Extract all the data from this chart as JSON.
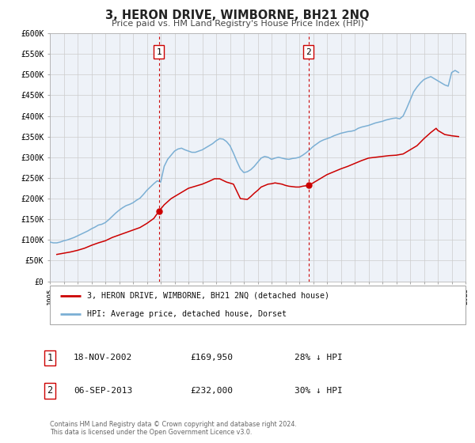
{
  "title": "3, HERON DRIVE, WIMBORNE, BH21 2NQ",
  "subtitle": "Price paid vs. HM Land Registry's House Price Index (HPI)",
  "xlim": [
    1995,
    2025
  ],
  "ylim": [
    0,
    600000
  ],
  "yticks": [
    0,
    50000,
    100000,
    150000,
    200000,
    250000,
    300000,
    350000,
    400000,
    450000,
    500000,
    550000,
    600000
  ],
  "ytick_labels": [
    "£0",
    "£50K",
    "£100K",
    "£150K",
    "£200K",
    "£250K",
    "£300K",
    "£350K",
    "£400K",
    "£450K",
    "£500K",
    "£550K",
    "£600K"
  ],
  "hpi_color": "#7bafd4",
  "price_color": "#cc0000",
  "marker_color": "#cc0000",
  "vline_color": "#cc0000",
  "grid_color": "#cccccc",
  "bg_color": "#eef2f8",
  "legend_label_price": "3, HERON DRIVE, WIMBORNE, BH21 2NQ (detached house)",
  "legend_label_hpi": "HPI: Average price, detached house, Dorset",
  "transaction1_date": "18-NOV-2002",
  "transaction1_price": "£169,950",
  "transaction1_pct": "28% ↓ HPI",
  "transaction1_x": 2002.88,
  "transaction1_y": 169950,
  "transaction2_date": "06-SEP-2013",
  "transaction2_price": "£232,000",
  "transaction2_pct": "30% ↓ HPI",
  "transaction2_x": 2013.68,
  "transaction2_y": 232000,
  "footer": "Contains HM Land Registry data © Crown copyright and database right 2024.\nThis data is licensed under the Open Government Licence v3.0.",
  "hpi_data_x": [
    1995.0,
    1995.25,
    1995.5,
    1995.75,
    1996.0,
    1996.25,
    1996.5,
    1996.75,
    1997.0,
    1997.25,
    1997.5,
    1997.75,
    1998.0,
    1998.25,
    1998.5,
    1998.75,
    1999.0,
    1999.25,
    1999.5,
    1999.75,
    2000.0,
    2000.25,
    2000.5,
    2000.75,
    2001.0,
    2001.25,
    2001.5,
    2001.75,
    2002.0,
    2002.25,
    2002.5,
    2002.75,
    2003.0,
    2003.25,
    2003.5,
    2003.75,
    2004.0,
    2004.25,
    2004.5,
    2004.75,
    2005.0,
    2005.25,
    2005.5,
    2005.75,
    2006.0,
    2006.25,
    2006.5,
    2006.75,
    2007.0,
    2007.25,
    2007.5,
    2007.75,
    2008.0,
    2008.25,
    2008.5,
    2008.75,
    2009.0,
    2009.25,
    2009.5,
    2009.75,
    2010.0,
    2010.25,
    2010.5,
    2010.75,
    2011.0,
    2011.25,
    2011.5,
    2011.75,
    2012.0,
    2012.25,
    2012.5,
    2012.75,
    2013.0,
    2013.25,
    2013.5,
    2013.75,
    2014.0,
    2014.25,
    2014.5,
    2014.75,
    2015.0,
    2015.25,
    2015.5,
    2015.75,
    2016.0,
    2016.25,
    2016.5,
    2016.75,
    2017.0,
    2017.25,
    2017.5,
    2017.75,
    2018.0,
    2018.25,
    2018.5,
    2018.75,
    2019.0,
    2019.25,
    2019.5,
    2019.75,
    2020.0,
    2020.25,
    2020.5,
    2020.75,
    2021.0,
    2021.25,
    2021.5,
    2021.75,
    2022.0,
    2022.25,
    2022.5,
    2022.75,
    2023.0,
    2023.25,
    2023.5,
    2023.75,
    2024.0,
    2024.25,
    2024.5
  ],
  "hpi_data_y": [
    95000,
    93000,
    93000,
    95000,
    98000,
    100000,
    103000,
    106000,
    110000,
    114000,
    118000,
    122000,
    127000,
    131000,
    136000,
    138000,
    142000,
    149000,
    157000,
    165000,
    172000,
    178000,
    183000,
    186000,
    190000,
    196000,
    201000,
    210000,
    220000,
    228000,
    236000,
    243000,
    240000,
    278000,
    295000,
    305000,
    315000,
    320000,
    322000,
    318000,
    315000,
    312000,
    312000,
    315000,
    318000,
    323000,
    328000,
    333000,
    340000,
    345000,
    344000,
    338000,
    328000,
    310000,
    290000,
    272000,
    263000,
    265000,
    270000,
    278000,
    288000,
    298000,
    302000,
    300000,
    295000,
    298000,
    300000,
    298000,
    296000,
    295000,
    297000,
    298000,
    300000,
    305000,
    311000,
    318000,
    326000,
    332000,
    338000,
    342000,
    345000,
    348000,
    352000,
    355000,
    358000,
    360000,
    362000,
    363000,
    365000,
    370000,
    373000,
    375000,
    377000,
    380000,
    383000,
    385000,
    387000,
    390000,
    392000,
    394000,
    395000,
    393000,
    400000,
    418000,
    438000,
    458000,
    470000,
    480000,
    488000,
    492000,
    495000,
    490000,
    485000,
    480000,
    475000,
    472000,
    505000,
    510000,
    505000
  ],
  "price_data_x": [
    1995.5,
    1996.0,
    1996.5,
    1997.0,
    1997.5,
    1998.0,
    1998.5,
    1999.0,
    1999.5,
    2000.0,
    2000.5,
    2001.0,
    2001.5,
    2002.0,
    2002.5,
    2002.88,
    2003.25,
    2003.75,
    2004.25,
    2004.75,
    2005.0,
    2005.5,
    2006.0,
    2006.5,
    2006.88,
    2007.25,
    2007.75,
    2008.25,
    2008.75,
    2009.25,
    2009.5,
    2009.75,
    2010.0,
    2010.25,
    2010.75,
    2011.0,
    2011.25,
    2011.75,
    2012.0,
    2012.25,
    2012.75,
    2013.0,
    2013.25,
    2013.68,
    2014.0,
    2014.5,
    2015.0,
    2015.5,
    2016.0,
    2016.5,
    2017.0,
    2017.5,
    2018.0,
    2018.5,
    2019.0,
    2019.5,
    2020.0,
    2020.5,
    2021.0,
    2021.5,
    2022.0,
    2022.5,
    2022.88,
    2023.0,
    2023.5,
    2024.0,
    2024.5
  ],
  "price_data_y": [
    65000,
    68000,
    71000,
    75000,
    80000,
    87000,
    93000,
    98000,
    106000,
    112000,
    118000,
    124000,
    130000,
    140000,
    152000,
    169950,
    185000,
    200000,
    210000,
    220000,
    225000,
    230000,
    235000,
    242000,
    248000,
    248000,
    240000,
    235000,
    200000,
    198000,
    205000,
    213000,
    220000,
    228000,
    235000,
    236000,
    238000,
    235000,
    232000,
    230000,
    228000,
    228000,
    230000,
    232000,
    238000,
    248000,
    258000,
    265000,
    272000,
    278000,
    285000,
    292000,
    298000,
    300000,
    302000,
    304000,
    305000,
    308000,
    318000,
    328000,
    345000,
    360000,
    370000,
    365000,
    355000,
    352000,
    350000
  ]
}
